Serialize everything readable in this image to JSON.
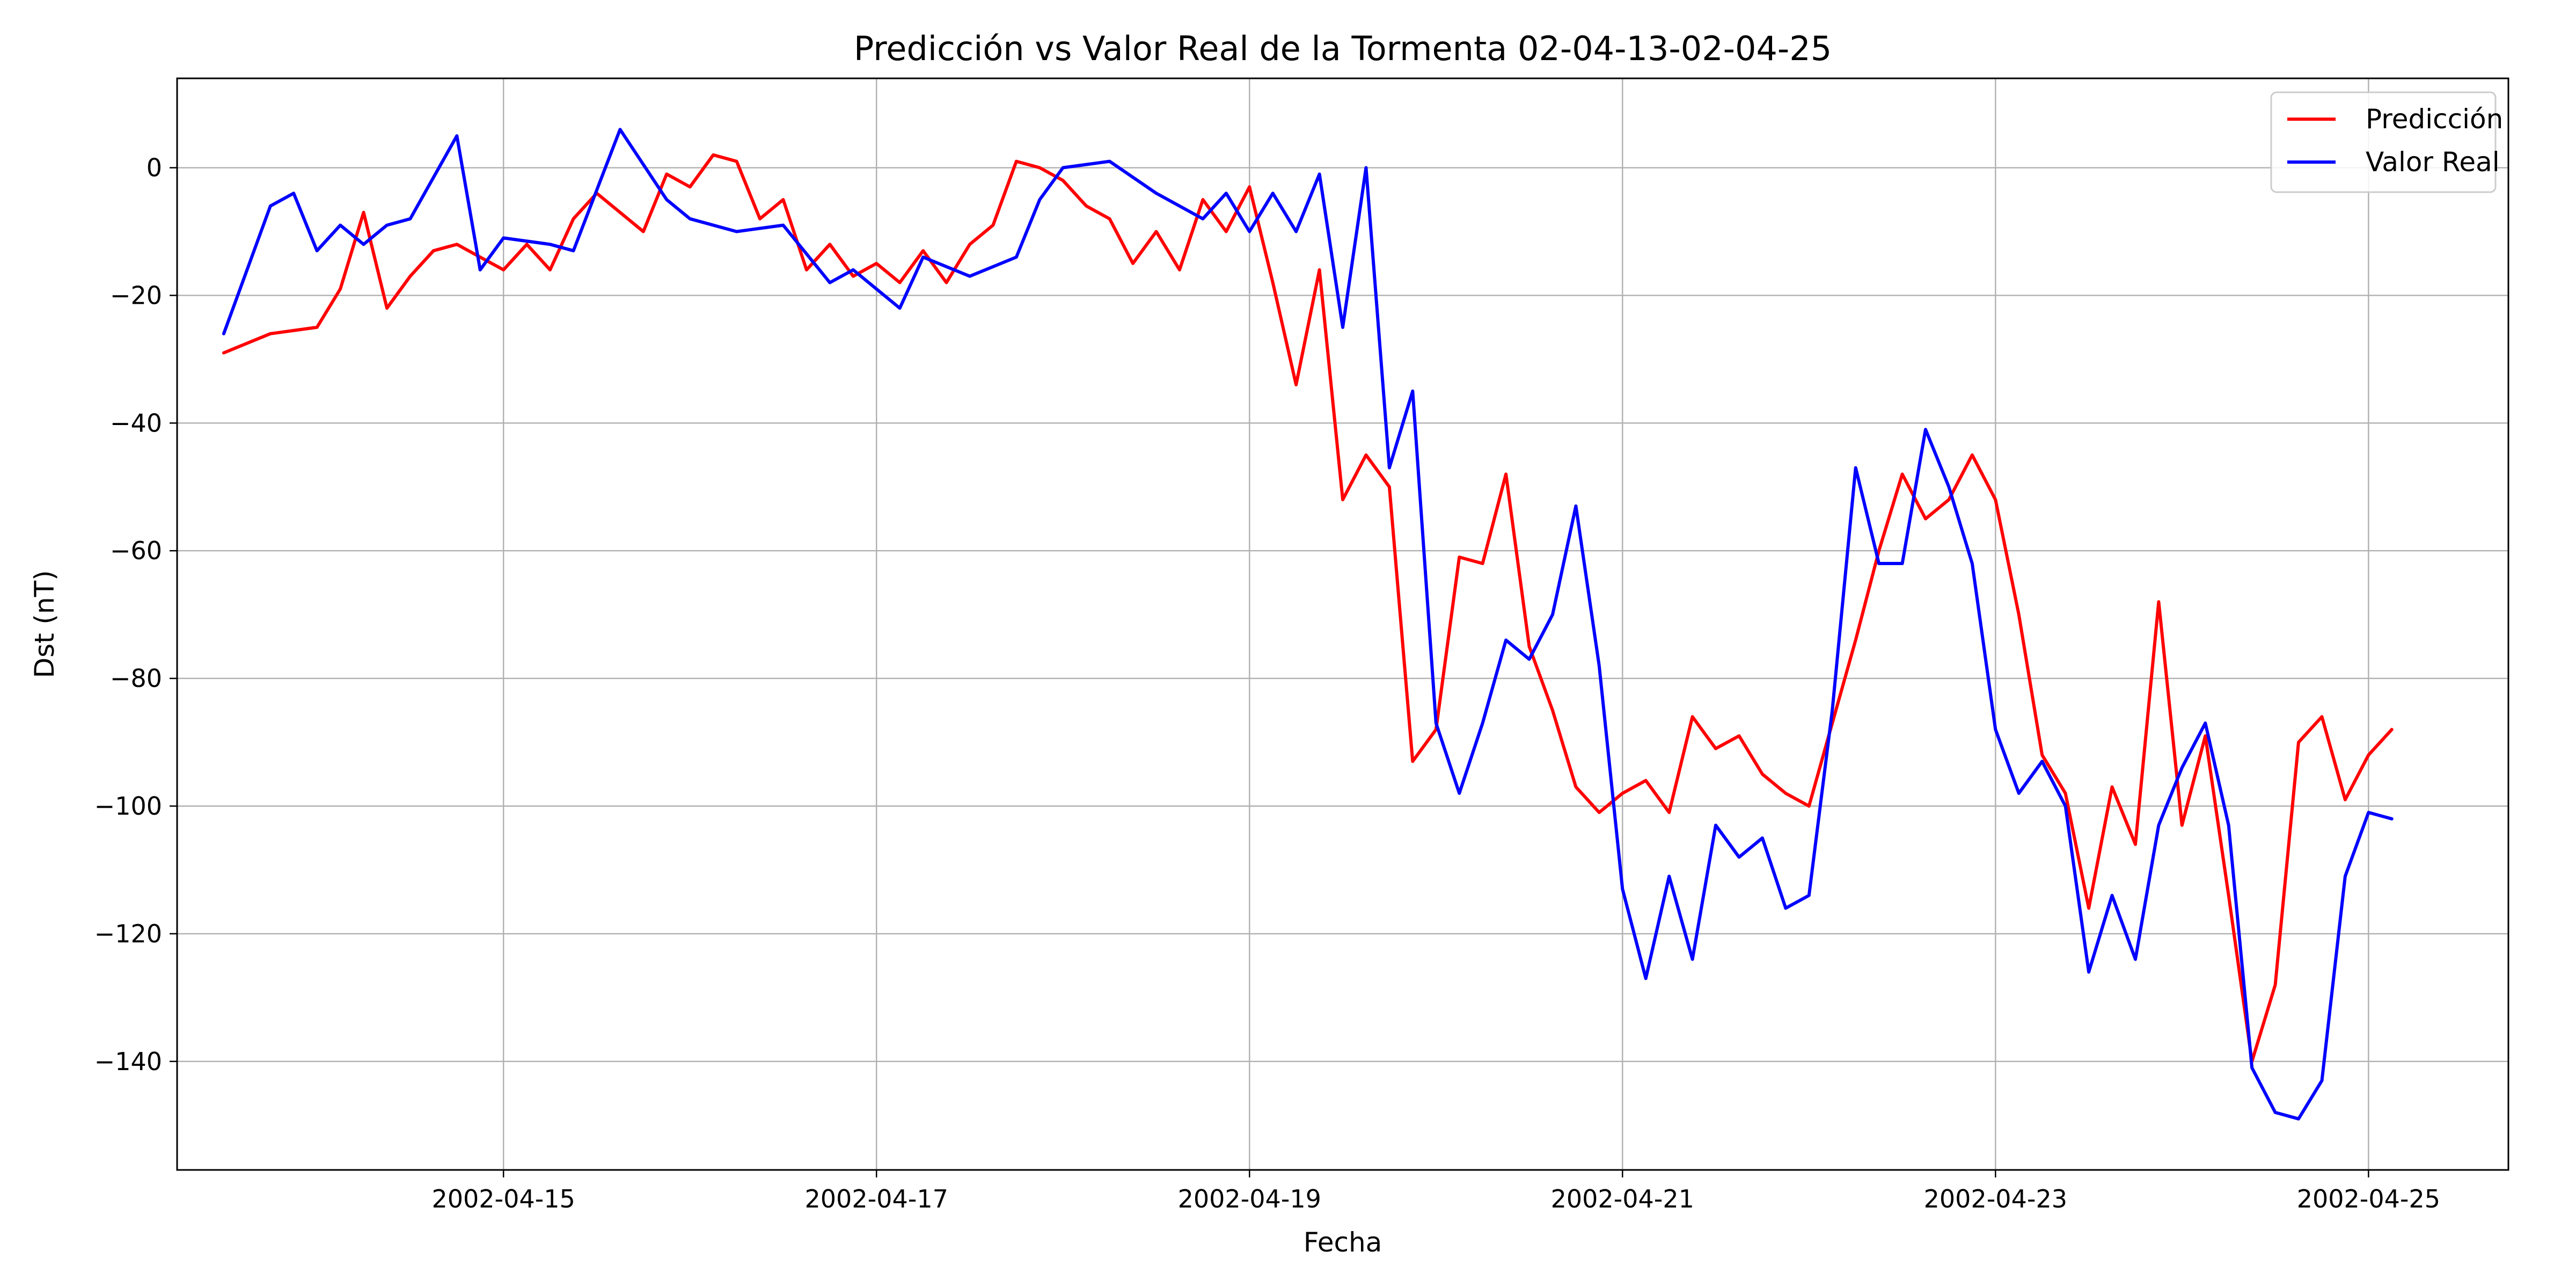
{
  "chart_data": {
    "type": "line",
    "title": "Predicción vs Valor Real de la Tormenta 02-04-13-02-04-25",
    "xlabel": "Fecha",
    "ylabel": "Dst (nT)",
    "x_ticks": [
      "2002-04-15",
      "2002-04-17",
      "2002-04-19",
      "2002-04-21",
      "2002-04-23",
      "2002-04-25"
    ],
    "y_ticks": [
      0,
      -20,
      -40,
      -60,
      -80,
      -100,
      -120,
      -140
    ],
    "xlim": [
      "2002-04-13 06:00",
      "2002-04-25 18:00"
    ],
    "ylim": [
      -157,
      14
    ],
    "grid": true,
    "legend_position": "top-right",
    "series": [
      {
        "name": "Predicción",
        "color": "#ff0000",
        "points": [
          [
            "2002-04-13 12:00",
            -29
          ],
          [
            "2002-04-13 18:00",
            -26
          ],
          [
            "2002-04-14 00:00",
            -25
          ],
          [
            "2002-04-14 03:00",
            -19
          ],
          [
            "2002-04-14 06:00",
            -7
          ],
          [
            "2002-04-14 09:00",
            -22
          ],
          [
            "2002-04-14 12:00",
            -17
          ],
          [
            "2002-04-14 15:00",
            -13
          ],
          [
            "2002-04-14 18:00",
            -12
          ],
          [
            "2002-04-14 21:00",
            -14
          ],
          [
            "2002-04-15 00:00",
            -16
          ],
          [
            "2002-04-15 03:00",
            -12
          ],
          [
            "2002-04-15 06:00",
            -16
          ],
          [
            "2002-04-15 09:00",
            -8
          ],
          [
            "2002-04-15 12:00",
            -4
          ],
          [
            "2002-04-15 15:00",
            -7
          ],
          [
            "2002-04-15 18:00",
            -10
          ],
          [
            "2002-04-15 21:00",
            -1
          ],
          [
            "2002-04-16 00:00",
            -3
          ],
          [
            "2002-04-16 03:00",
            2
          ],
          [
            "2002-04-16 06:00",
            1
          ],
          [
            "2002-04-16 09:00",
            -8
          ],
          [
            "2002-04-16 12:00",
            -5
          ],
          [
            "2002-04-16 15:00",
            -16
          ],
          [
            "2002-04-16 18:00",
            -12
          ],
          [
            "2002-04-16 21:00",
            -17
          ],
          [
            "2002-04-17 00:00",
            -15
          ],
          [
            "2002-04-17 03:00",
            -18
          ],
          [
            "2002-04-17 06:00",
            -13
          ],
          [
            "2002-04-17 09:00",
            -18
          ],
          [
            "2002-04-17 12:00",
            -12
          ],
          [
            "2002-04-17 15:00",
            -9
          ],
          [
            "2002-04-17 18:00",
            1
          ],
          [
            "2002-04-17 21:00",
            0
          ],
          [
            "2002-04-18 00:00",
            -2
          ],
          [
            "2002-04-18 03:00",
            -6
          ],
          [
            "2002-04-18 06:00",
            -8
          ],
          [
            "2002-04-18 09:00",
            -15
          ],
          [
            "2002-04-18 12:00",
            -10
          ],
          [
            "2002-04-18 15:00",
            -16
          ],
          [
            "2002-04-18 18:00",
            -5
          ],
          [
            "2002-04-18 21:00",
            -10
          ],
          [
            "2002-04-19 00:00",
            -3
          ],
          [
            "2002-04-19 03:00",
            -18
          ],
          [
            "2002-04-19 06:00",
            -34
          ],
          [
            "2002-04-19 09:00",
            -16
          ],
          [
            "2002-04-19 12:00",
            -52
          ],
          [
            "2002-04-19 15:00",
            -45
          ],
          [
            "2002-04-19 18:00",
            -50
          ],
          [
            "2002-04-19 21:00",
            -93
          ],
          [
            "2002-04-20 00:00",
            -88
          ],
          [
            "2002-04-20 03:00",
            -61
          ],
          [
            "2002-04-20 06:00",
            -62
          ],
          [
            "2002-04-20 09:00",
            -48
          ],
          [
            "2002-04-20 12:00",
            -75
          ],
          [
            "2002-04-20 15:00",
            -85
          ],
          [
            "2002-04-20 18:00",
            -97
          ],
          [
            "2002-04-20 21:00",
            -101
          ],
          [
            "2002-04-21 00:00",
            -98
          ],
          [
            "2002-04-21 03:00",
            -96
          ],
          [
            "2002-04-21 06:00",
            -101
          ],
          [
            "2002-04-21 09:00",
            -86
          ],
          [
            "2002-04-21 12:00",
            -91
          ],
          [
            "2002-04-21 15:00",
            -89
          ],
          [
            "2002-04-21 18:00",
            -95
          ],
          [
            "2002-04-21 21:00",
            -98
          ],
          [
            "2002-04-22 00:00",
            -100
          ],
          [
            "2002-04-22 03:00",
            -87
          ],
          [
            "2002-04-22 06:00",
            -74
          ],
          [
            "2002-04-22 09:00",
            -60
          ],
          [
            "2002-04-22 12:00",
            -48
          ],
          [
            "2002-04-22 15:00",
            -55
          ],
          [
            "2002-04-22 18:00",
            -52
          ],
          [
            "2002-04-22 21:00",
            -45
          ],
          [
            "2002-04-23 00:00",
            -52
          ],
          [
            "2002-04-23 03:00",
            -70
          ],
          [
            "2002-04-23 06:00",
            -92
          ],
          [
            "2002-04-23 09:00",
            -98
          ],
          [
            "2002-04-23 12:00",
            -116
          ],
          [
            "2002-04-23 15:00",
            -97
          ],
          [
            "2002-04-23 18:00",
            -106
          ],
          [
            "2002-04-23 21:00",
            -68
          ],
          [
            "2002-04-24 00:00",
            -103
          ],
          [
            "2002-04-24 03:00",
            -89
          ],
          [
            "2002-04-24 06:00",
            -114
          ],
          [
            "2002-04-24 09:00",
            -140
          ],
          [
            "2002-04-24 12:00",
            -128
          ],
          [
            "2002-04-24 15:00",
            -90
          ],
          [
            "2002-04-24 18:00",
            -86
          ],
          [
            "2002-04-24 21:00",
            -99
          ],
          [
            "2002-04-25 00:00",
            -92
          ],
          [
            "2002-04-25 03:00",
            -88
          ]
        ]
      },
      {
        "name": "Valor Real",
        "color": "#0000ff",
        "points": [
          [
            "2002-04-13 12:00",
            -26
          ],
          [
            "2002-04-13 18:00",
            -6
          ],
          [
            "2002-04-13 21:00",
            -4
          ],
          [
            "2002-04-14 00:00",
            -13
          ],
          [
            "2002-04-14 03:00",
            -9
          ],
          [
            "2002-04-14 06:00",
            -12
          ],
          [
            "2002-04-14 09:00",
            -9
          ],
          [
            "2002-04-14 12:00",
            -8
          ],
          [
            "2002-04-14 18:00",
            5
          ],
          [
            "2002-04-14 21:00",
            -16
          ],
          [
            "2002-04-15 00:00",
            -11
          ],
          [
            "2002-04-15 06:00",
            -12
          ],
          [
            "2002-04-15 09:00",
            -13
          ],
          [
            "2002-04-15 15:00",
            6
          ],
          [
            "2002-04-15 21:00",
            -5
          ],
          [
            "2002-04-16 00:00",
            -8
          ],
          [
            "2002-04-16 06:00",
            -10
          ],
          [
            "2002-04-16 12:00",
            -9
          ],
          [
            "2002-04-16 18:00",
            -18
          ],
          [
            "2002-04-16 21:00",
            -16
          ],
          [
            "2002-04-17 03:00",
            -22
          ],
          [
            "2002-04-17 06:00",
            -14
          ],
          [
            "2002-04-17 12:00",
            -17
          ],
          [
            "2002-04-17 18:00",
            -14
          ],
          [
            "2002-04-17 21:00",
            -5
          ],
          [
            "2002-04-18 00:00",
            0
          ],
          [
            "2002-04-18 06:00",
            1
          ],
          [
            "2002-04-18 12:00",
            -4
          ],
          [
            "2002-04-18 18:00",
            -8
          ],
          [
            "2002-04-18 21:00",
            -4
          ],
          [
            "2002-04-19 00:00",
            -10
          ],
          [
            "2002-04-19 03:00",
            -4
          ],
          [
            "2002-04-19 06:00",
            -10
          ],
          [
            "2002-04-19 09:00",
            -1
          ],
          [
            "2002-04-19 12:00",
            -25
          ],
          [
            "2002-04-19 15:00",
            0
          ],
          [
            "2002-04-19 18:00",
            -47
          ],
          [
            "2002-04-19 21:00",
            -35
          ],
          [
            "2002-04-20 00:00",
            -87
          ],
          [
            "2002-04-20 03:00",
            -98
          ],
          [
            "2002-04-20 06:00",
            -87
          ],
          [
            "2002-04-20 09:00",
            -74
          ],
          [
            "2002-04-20 12:00",
            -77
          ],
          [
            "2002-04-20 15:00",
            -70
          ],
          [
            "2002-04-20 18:00",
            -53
          ],
          [
            "2002-04-20 21:00",
            -78
          ],
          [
            "2002-04-21 00:00",
            -113
          ],
          [
            "2002-04-21 03:00",
            -127
          ],
          [
            "2002-04-21 06:00",
            -111
          ],
          [
            "2002-04-21 09:00",
            -124
          ],
          [
            "2002-04-21 12:00",
            -103
          ],
          [
            "2002-04-21 15:00",
            -108
          ],
          [
            "2002-04-21 18:00",
            -105
          ],
          [
            "2002-04-21 21:00",
            -116
          ],
          [
            "2002-04-22 00:00",
            -114
          ],
          [
            "2002-04-22 03:00",
            -85
          ],
          [
            "2002-04-22 06:00",
            -47
          ],
          [
            "2002-04-22 09:00",
            -62
          ],
          [
            "2002-04-22 12:00",
            -62
          ],
          [
            "2002-04-22 15:00",
            -41
          ],
          [
            "2002-04-22 18:00",
            -50
          ],
          [
            "2002-04-22 21:00",
            -62
          ],
          [
            "2002-04-23 00:00",
            -88
          ],
          [
            "2002-04-23 03:00",
            -98
          ],
          [
            "2002-04-23 06:00",
            -93
          ],
          [
            "2002-04-23 09:00",
            -100
          ],
          [
            "2002-04-23 12:00",
            -126
          ],
          [
            "2002-04-23 15:00",
            -114
          ],
          [
            "2002-04-23 18:00",
            -124
          ],
          [
            "2002-04-23 21:00",
            -103
          ],
          [
            "2002-04-24 00:00",
            -94
          ],
          [
            "2002-04-24 03:00",
            -87
          ],
          [
            "2002-04-24 06:00",
            -103
          ],
          [
            "2002-04-24 09:00",
            -141
          ],
          [
            "2002-04-24 12:00",
            -148
          ],
          [
            "2002-04-24 15:00",
            -149
          ],
          [
            "2002-04-24 18:00",
            -143
          ],
          [
            "2002-04-24 21:00",
            -111
          ],
          [
            "2002-04-25 00:00",
            -101
          ],
          [
            "2002-04-25 03:00",
            -102
          ]
        ]
      }
    ]
  }
}
